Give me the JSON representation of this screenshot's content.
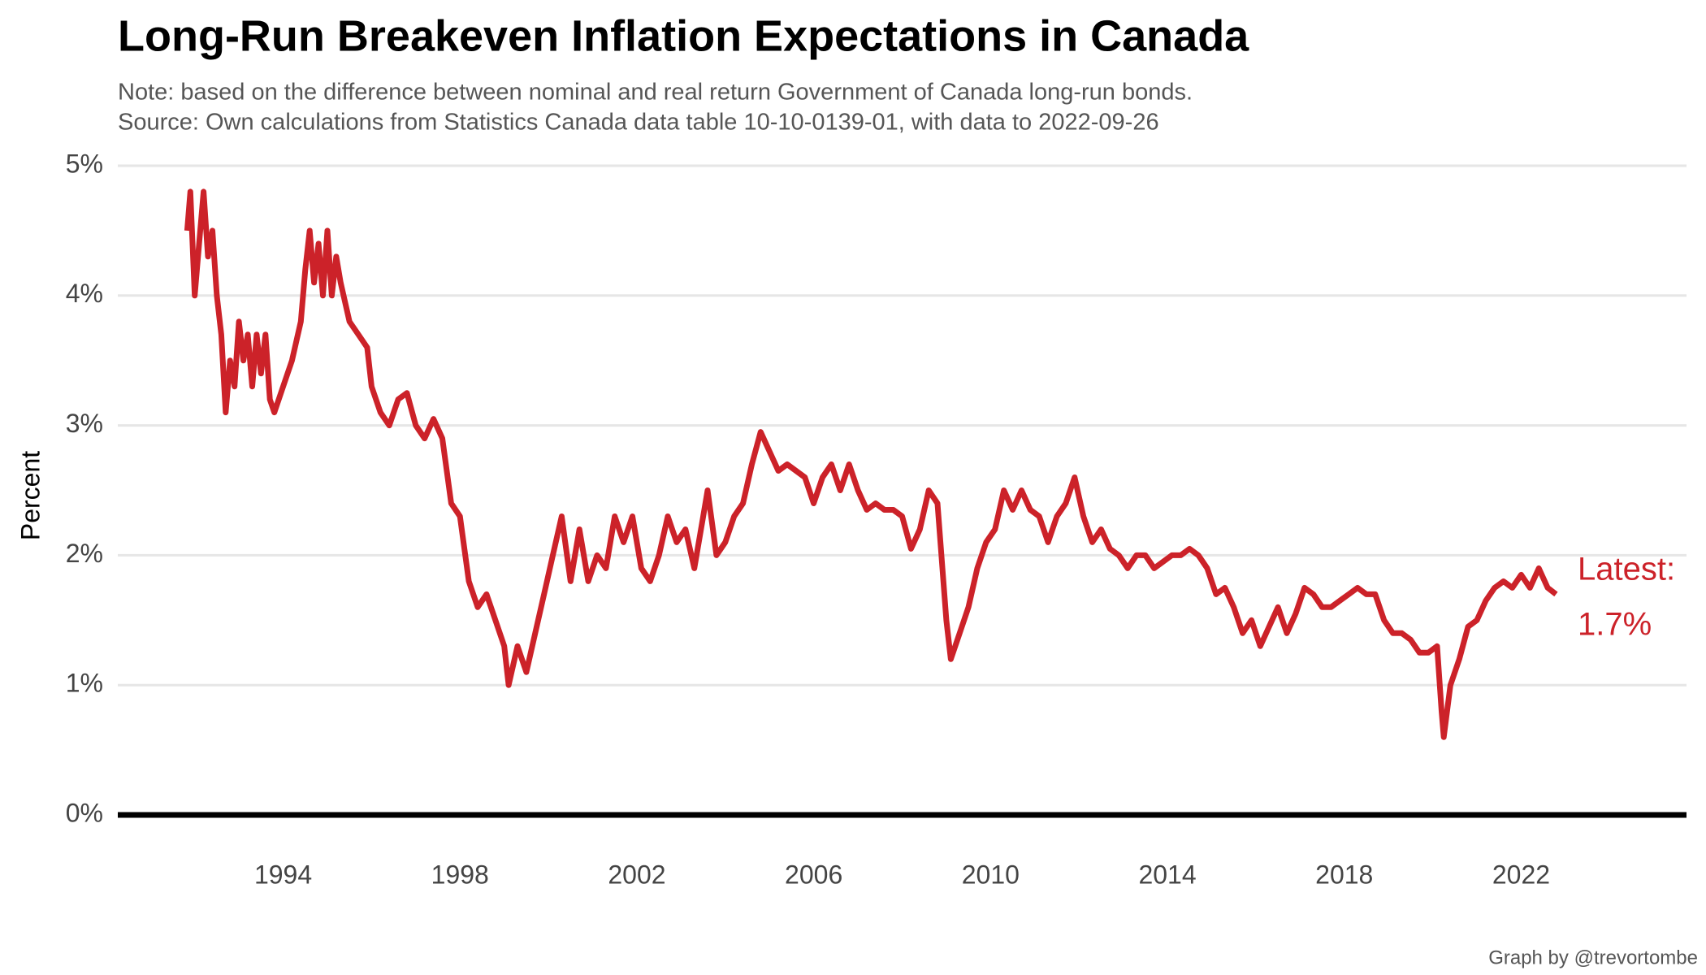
{
  "chart_data": {
    "type": "line",
    "title": "Long-Run Breakeven Inflation Expectations in Canada",
    "subtitle": [
      "Note: based on the difference between nominal and real return Government of Canada long-run bonds.",
      "Source: Own calculations from Statistics Canada data table 10-10-0139-01, with data to 2022-09-26"
    ],
    "y_label": "Percent",
    "caption": "Graph by @trevortombe",
    "annotation": [
      "Latest:",
      "1.7%"
    ],
    "xlim": [
      1990.26,
      2025.74
    ],
    "xticks": [
      1994,
      1998,
      2002,
      2006,
      2010,
      2014,
      2018,
      2022
    ],
    "ylim": [
      -0.2,
      5.1
    ],
    "yticks": [
      {
        "value": 0,
        "label": "0%"
      },
      {
        "value": 1,
        "label": "1%"
      },
      {
        "value": 2,
        "label": "2%"
      },
      {
        "value": 3,
        "label": "3%"
      },
      {
        "value": 4,
        "label": "4%"
      },
      {
        "value": 5,
        "label": "5%"
      }
    ],
    "grid": true,
    "series": [
      {
        "color": "#cc2229",
        "x": [
          1991.83,
          1991.9,
          1992.0,
          1992.1,
          1992.2,
          1992.3,
          1992.4,
          1992.5,
          1992.6,
          1992.7,
          1992.8,
          1992.9,
          1993.0,
          1993.1,
          1993.2,
          1993.3,
          1993.4,
          1993.5,
          1993.6,
          1993.7,
          1993.8,
          1994.0,
          1994.2,
          1994.4,
          1994.5,
          1994.6,
          1994.7,
          1994.8,
          1994.9,
          1995.0,
          1995.1,
          1995.2,
          1995.3,
          1995.5,
          1995.7,
          1995.9,
          1996.0,
          1996.2,
          1996.4,
          1996.6,
          1996.8,
          1997.0,
          1997.2,
          1997.4,
          1997.6,
          1997.8,
          1998.0,
          1998.2,
          1998.4,
          1998.6,
          1998.8,
          1999.0,
          1999.1,
          1999.3,
          1999.5,
          1999.7,
          1999.9,
          2000.1,
          2000.3,
          2000.5,
          2000.7,
          2000.9,
          2001.1,
          2001.3,
          2001.5,
          2001.7,
          2001.9,
          2002.1,
          2002.3,
          2002.5,
          2002.7,
          2002.9,
          2003.1,
          2003.3,
          2003.5,
          2003.6,
          2003.8,
          2004.0,
          2004.2,
          2004.4,
          2004.6,
          2004.8,
          2005.0,
          2005.2,
          2005.4,
          2005.6,
          2005.8,
          2006.0,
          2006.2,
          2006.4,
          2006.6,
          2006.8,
          2007.0,
          2007.2,
          2007.4,
          2007.6,
          2007.8,
          2008.0,
          2008.2,
          2008.4,
          2008.6,
          2008.8,
          2009.0,
          2009.1,
          2009.3,
          2009.5,
          2009.7,
          2009.9,
          2010.1,
          2010.3,
          2010.5,
          2010.7,
          2010.9,
          2011.1,
          2011.3,
          2011.5,
          2011.7,
          2011.9,
          2012.1,
          2012.3,
          2012.5,
          2012.7,
          2012.9,
          2013.1,
          2013.3,
          2013.5,
          2013.7,
          2013.9,
          2014.1,
          2014.3,
          2014.5,
          2014.7,
          2014.9,
          2015.1,
          2015.3,
          2015.5,
          2015.7,
          2015.9,
          2016.1,
          2016.3,
          2016.5,
          2016.7,
          2016.9,
          2017.1,
          2017.3,
          2017.5,
          2017.7,
          2017.9,
          2018.1,
          2018.3,
          2018.5,
          2018.7,
          2018.9,
          2019.1,
          2019.3,
          2019.5,
          2019.7,
          2019.9,
          2020.1,
          2020.2,
          2020.25,
          2020.4,
          2020.6,
          2020.8,
          2021.0,
          2021.2,
          2021.4,
          2021.6,
          2021.8,
          2022.0,
          2022.2,
          2022.4,
          2022.6,
          2022.79
        ],
        "values": [
          4.5,
          4.8,
          4.0,
          4.4,
          4.8,
          4.3,
          4.5,
          4.0,
          3.7,
          3.1,
          3.5,
          3.3,
          3.8,
          3.5,
          3.7,
          3.3,
          3.7,
          3.4,
          3.7,
          3.2,
          3.1,
          3.3,
          3.5,
          3.8,
          4.2,
          4.5,
          4.1,
          4.4,
          4.0,
          4.5,
          4.0,
          4.3,
          4.1,
          3.8,
          3.7,
          3.6,
          3.3,
          3.1,
          3.0,
          3.2,
          3.25,
          3.0,
          2.9,
          3.05,
          2.9,
          2.4,
          2.3,
          1.8,
          1.6,
          1.7,
          1.5,
          1.3,
          1.0,
          1.3,
          1.1,
          1.4,
          1.7,
          2.0,
          2.3,
          1.8,
          2.2,
          1.8,
          2.0,
          1.9,
          2.3,
          2.1,
          2.3,
          1.9,
          1.8,
          2.0,
          2.3,
          2.1,
          2.2,
          1.9,
          2.3,
          2.5,
          2.0,
          2.1,
          2.3,
          2.4,
          2.7,
          2.95,
          2.8,
          2.65,
          2.7,
          2.65,
          2.6,
          2.4,
          2.6,
          2.7,
          2.5,
          2.7,
          2.5,
          2.35,
          2.4,
          2.35,
          2.35,
          2.3,
          2.05,
          2.2,
          2.5,
          2.4,
          1.5,
          1.2,
          1.4,
          1.6,
          1.9,
          2.1,
          2.2,
          2.5,
          2.35,
          2.5,
          2.35,
          2.3,
          2.1,
          2.3,
          2.4,
          2.6,
          2.3,
          2.1,
          2.2,
          2.05,
          2.0,
          1.9,
          2.0,
          2.0,
          1.9,
          1.95,
          2.0,
          2.0,
          2.05,
          2.0,
          1.9,
          1.7,
          1.75,
          1.6,
          1.4,
          1.5,
          1.3,
          1.45,
          1.6,
          1.4,
          1.55,
          1.75,
          1.7,
          1.6,
          1.6,
          1.65,
          1.7,
          1.75,
          1.7,
          1.7,
          1.5,
          1.4,
          1.4,
          1.35,
          1.25,
          1.25,
          1.3,
          0.8,
          0.6,
          1.0,
          1.2,
          1.45,
          1.5,
          1.65,
          1.75,
          1.8,
          1.75,
          1.85,
          1.75,
          1.9,
          1.75,
          1.7
        ]
      }
    ]
  }
}
